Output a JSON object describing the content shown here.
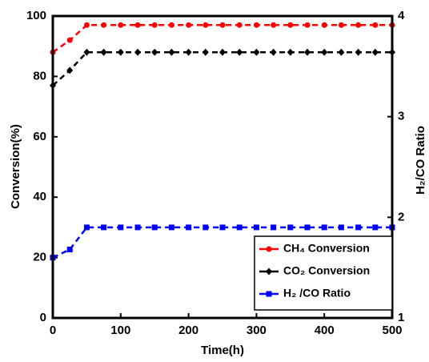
{
  "chart_data": {
    "type": "line",
    "x_label": "Time(h)",
    "y_label": "Conversion(%)",
    "y2_label": "H₂/CO Ratio",
    "x": [
      0,
      25,
      50,
      75,
      100,
      125,
      150,
      175,
      200,
      225,
      250,
      275,
      300,
      325,
      350,
      375,
      400,
      425,
      450,
      475,
      500
    ],
    "series": [
      {
        "name": "CH₄ Conversion",
        "color": "#ff0000",
        "marker": "circle",
        "values": [
          88,
          92,
          97,
          97,
          97,
          97,
          97,
          97,
          97,
          97,
          97,
          97,
          97,
          97,
          97,
          97,
          97,
          97,
          97,
          97,
          97
        ]
      },
      {
        "name": "CO₂ Conversion",
        "color": "#000000",
        "marker": "diamond",
        "values": [
          77,
          82,
          88,
          88,
          88,
          88,
          88,
          88,
          88,
          88,
          88,
          88,
          88,
          88,
          88,
          88,
          88,
          88,
          88,
          88,
          88
        ]
      },
      {
        "name": "H₂ /CO Ratio",
        "color": "#0000ff",
        "marker": "square",
        "axis": "y2",
        "values": [
          1.6,
          1.68,
          1.9,
          1.9,
          1.9,
          1.9,
          1.9,
          1.9,
          1.9,
          1.9,
          1.9,
          1.9,
          1.9,
          1.9,
          1.9,
          1.9,
          1.9,
          1.9,
          1.9,
          1.9,
          1.9
        ]
      }
    ],
    "xlim": [
      0,
      500
    ],
    "xticks": [
      0,
      100,
      200,
      300,
      400,
      500
    ],
    "ylim": [
      0,
      100
    ],
    "yticks": [
      0,
      20,
      40,
      60,
      80,
      100
    ],
    "y2lim": [
      1,
      4
    ],
    "y2ticks": [
      1,
      2,
      3,
      4
    ],
    "legend": "lower right"
  }
}
